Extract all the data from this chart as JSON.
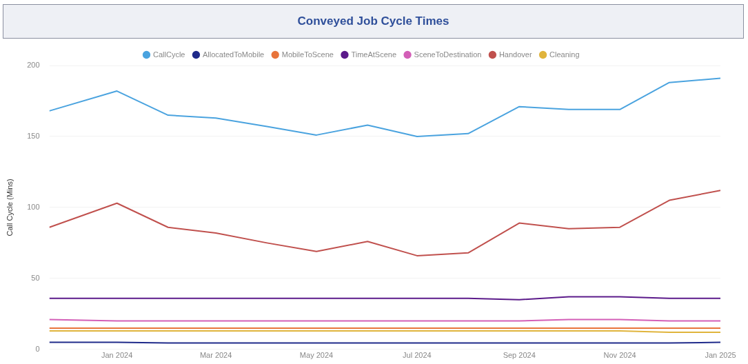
{
  "chart_data": {
    "type": "line",
    "title": "Conveyed Job Cycle Times",
    "ylabel": "Call Cycle (Mins)",
    "x": [
      "2023-11-21",
      "2024-01",
      "2024-02",
      "2024-03",
      "2024-04",
      "2024-05",
      "2024-06",
      "2024-07",
      "2024-08",
      "2024-09",
      "2024-10",
      "2024-11",
      "2024-12",
      "2025-01"
    ],
    "xlim": [
      "2023-11-21",
      "2025-01"
    ],
    "xticks": [
      {
        "value": "2024-01",
        "label": "Jan 2024"
      },
      {
        "value": "2024-03",
        "label": "Mar 2024"
      },
      {
        "value": "2024-05",
        "label": "May 2024"
      },
      {
        "value": "2024-07",
        "label": "Jul 2024"
      },
      {
        "value": "2024-09",
        "label": "Sep 2024"
      },
      {
        "value": "2024-11",
        "label": "Nov 2024"
      },
      {
        "value": "2025-01",
        "label": "Jan 2025"
      }
    ],
    "ylim": [
      0,
      200
    ],
    "yticks": [
      0,
      50,
      100,
      150,
      200
    ],
    "grid": "y",
    "legend": "top",
    "marker": "none",
    "line_style": "solid",
    "series": [
      {
        "name": "CallCycle",
        "color": "#4aa3df",
        "values": [
          168,
          182,
          165,
          163,
          157,
          151,
          158,
          150,
          152,
          171,
          169,
          169,
          188,
          191
        ]
      },
      {
        "name": "AllocatedToMobile",
        "color": "#1f2a8a",
        "values": [
          5,
          5,
          4.5,
          4.5,
          4.5,
          4.5,
          4.5,
          4.5,
          4.5,
          4.5,
          4.5,
          4.5,
          4.5,
          5
        ]
      },
      {
        "name": "MobileToScene",
        "color": "#e8743b",
        "values": [
          15,
          15,
          15,
          15,
          15,
          15,
          15,
          15,
          15,
          15,
          15,
          15,
          15,
          15
        ]
      },
      {
        "name": "TimeAtScene",
        "color": "#5b1a8a",
        "values": [
          36,
          36,
          36,
          36,
          36,
          36,
          36,
          36,
          36,
          35,
          37,
          37,
          36,
          36
        ]
      },
      {
        "name": "SceneToDestination",
        "color": "#d35fb7",
        "values": [
          21,
          20,
          20,
          20,
          20,
          20,
          20,
          20,
          20,
          20,
          21,
          21,
          20,
          20
        ]
      },
      {
        "name": "Handover",
        "color": "#c0504d",
        "values": [
          86,
          103,
          86,
          82,
          75,
          69,
          76,
          66,
          68,
          89,
          85,
          86,
          105,
          112
        ]
      },
      {
        "name": "Cleaning",
        "color": "#e0b43c",
        "values": [
          13,
          13,
          13,
          13,
          13,
          13,
          13,
          13,
          13,
          13,
          13,
          13,
          12,
          12
        ]
      }
    ]
  }
}
